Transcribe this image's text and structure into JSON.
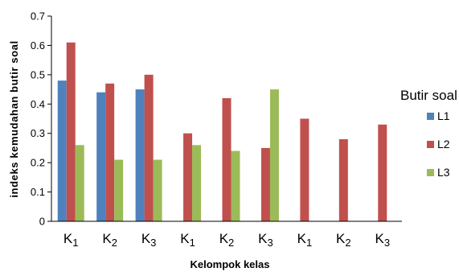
{
  "chart_data": {
    "type": "bar",
    "categories": [
      {
        "base": "K",
        "sub": "1"
      },
      {
        "base": "K",
        "sub": "2"
      },
      {
        "base": "K",
        "sub": "3"
      },
      {
        "base": "K",
        "sub": "1"
      },
      {
        "base": "K",
        "sub": "2"
      },
      {
        "base": "K",
        "sub": "3"
      },
      {
        "base": "K",
        "sub": "1"
      },
      {
        "base": "K",
        "sub": "2"
      },
      {
        "base": "K",
        "sub": "3"
      }
    ],
    "series": [
      {
        "name": "L1",
        "color": "#4f81bd",
        "values": [
          0.48,
          0.44,
          0.45,
          null,
          null,
          null,
          null,
          null,
          null
        ]
      },
      {
        "name": "L2",
        "color": "#c0504d",
        "values": [
          0.61,
          0.47,
          0.5,
          0.3,
          0.42,
          0.25,
          0.35,
          0.28,
          0.33
        ]
      },
      {
        "name": "L3",
        "color": "#9bbb59",
        "values": [
          0.26,
          0.21,
          0.21,
          0.26,
          0.24,
          0.45,
          null,
          null,
          null
        ]
      }
    ],
    "ylim": [
      0,
      0.7
    ],
    "yticks": [
      "0",
      "0.1",
      "0.2",
      "0.3",
      "0.4",
      "0.5",
      "0.6",
      "0.7"
    ],
    "ylabel": "indeks kemudahan butir soal",
    "xlabel": "Kelompok kelas",
    "legend_title": "Butir soal",
    "legend_position": "right",
    "grid": false
  }
}
